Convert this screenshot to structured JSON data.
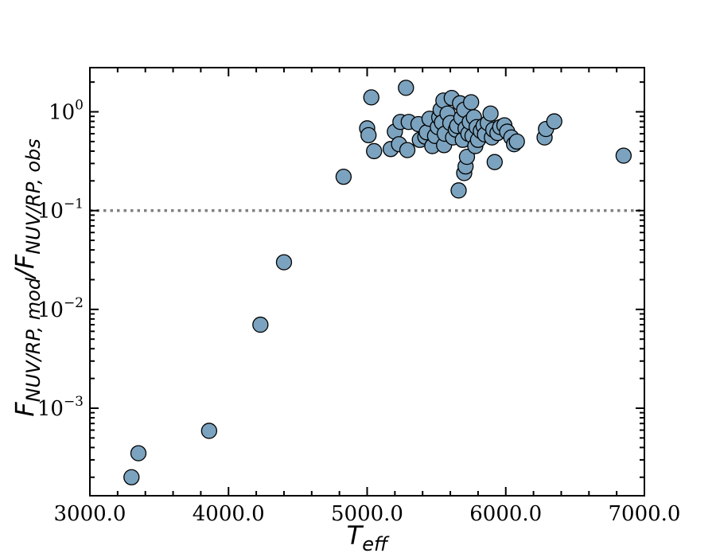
{
  "chart_data": {
    "type": "scatter",
    "title": "",
    "xlabel": {
      "base": "T",
      "sub": "eff"
    },
    "ylabel": {
      "base": "F",
      "sub1": "NUV/RP, mod",
      "slash": "/",
      "base2": "F",
      "sub2": "NUV/RP, obs"
    },
    "xlim": [
      3000,
      7000
    ],
    "ylim": [
      0.00013,
      2.8
    ],
    "yscale": "log",
    "x_ticks": [
      3000,
      4000,
      5000,
      6000,
      7000
    ],
    "x_tick_labels": [
      "3000.0",
      "4000.0",
      "5000.0",
      "6000.0",
      "7000.0"
    ],
    "y_ticks": [
      {
        "value": 0.001,
        "base": "10",
        "exp": "−3"
      },
      {
        "value": 0.01,
        "base": "10",
        "exp": "−2"
      },
      {
        "value": 0.1,
        "base": "10",
        "exp": "−1"
      },
      {
        "value": 1,
        "base": "10",
        "exp": "0"
      }
    ],
    "reference_line": {
      "y": 0.1,
      "style": "dotted",
      "color": "#808080"
    },
    "grid": false,
    "marker_color": "#7ba3bf",
    "marker_edge_color": "#000000",
    "points": [
      {
        "x": 3300,
        "y": 0.0002
      },
      {
        "x": 3350,
        "y": 0.00035
      },
      {
        "x": 3860,
        "y": 0.00059
      },
      {
        "x": 4230,
        "y": 0.007
      },
      {
        "x": 4400,
        "y": 0.03
      },
      {
        "x": 4830,
        "y": 0.22
      },
      {
        "x": 5000,
        "y": 0.68
      },
      {
        "x": 5010,
        "y": 0.58
      },
      {
        "x": 5030,
        "y": 1.4
      },
      {
        "x": 5050,
        "y": 0.4
      },
      {
        "x": 5170,
        "y": 0.42
      },
      {
        "x": 5200,
        "y": 0.63
      },
      {
        "x": 5230,
        "y": 0.47
      },
      {
        "x": 5240,
        "y": 0.79
      },
      {
        "x": 5280,
        "y": 1.75
      },
      {
        "x": 5290,
        "y": 0.41
      },
      {
        "x": 5300,
        "y": 0.79
      },
      {
        "x": 5370,
        "y": 0.75
      },
      {
        "x": 5380,
        "y": 0.52
      },
      {
        "x": 5420,
        "y": 0.56
      },
      {
        "x": 5430,
        "y": 0.62
      },
      {
        "x": 5450,
        "y": 0.85
      },
      {
        "x": 5470,
        "y": 0.45
      },
      {
        "x": 5490,
        "y": 0.57
      },
      {
        "x": 5510,
        "y": 0.7
      },
      {
        "x": 5520,
        "y": 0.88
      },
      {
        "x": 5530,
        "y": 1.05
      },
      {
        "x": 5540,
        "y": 0.78
      },
      {
        "x": 5550,
        "y": 1.3
      },
      {
        "x": 5555,
        "y": 0.46
      },
      {
        "x": 5560,
        "y": 0.6
      },
      {
        "x": 5580,
        "y": 0.96
      },
      {
        "x": 5600,
        "y": 0.77
      },
      {
        "x": 5610,
        "y": 1.38
      },
      {
        "x": 5620,
        "y": 0.55
      },
      {
        "x": 5640,
        "y": 0.66
      },
      {
        "x": 5650,
        "y": 0.72
      },
      {
        "x": 5660,
        "y": 0.16
      },
      {
        "x": 5670,
        "y": 1.22
      },
      {
        "x": 5680,
        "y": 0.87
      },
      {
        "x": 5690,
        "y": 0.52
      },
      {
        "x": 5700,
        "y": 0.24
      },
      {
        "x": 5700,
        "y": 1.05
      },
      {
        "x": 5710,
        "y": 0.68
      },
      {
        "x": 5710,
        "y": 0.28
      },
      {
        "x": 5720,
        "y": 0.35
      },
      {
        "x": 5730,
        "y": 0.6
      },
      {
        "x": 5740,
        "y": 0.79
      },
      {
        "x": 5750,
        "y": 1.25
      },
      {
        "x": 5760,
        "y": 0.57
      },
      {
        "x": 5770,
        "y": 0.88
      },
      {
        "x": 5780,
        "y": 0.45
      },
      {
        "x": 5790,
        "y": 0.7
      },
      {
        "x": 5800,
        "y": 0.52
      },
      {
        "x": 5820,
        "y": 0.64
      },
      {
        "x": 5840,
        "y": 0.72
      },
      {
        "x": 5850,
        "y": 0.59
      },
      {
        "x": 5870,
        "y": 0.77
      },
      {
        "x": 5890,
        "y": 0.96
      },
      {
        "x": 5900,
        "y": 0.55
      },
      {
        "x": 5910,
        "y": 0.66
      },
      {
        "x": 5920,
        "y": 0.31
      },
      {
        "x": 5940,
        "y": 0.61
      },
      {
        "x": 5960,
        "y": 0.7
      },
      {
        "x": 5990,
        "y": 0.73
      },
      {
        "x": 6010,
        "y": 0.63
      },
      {
        "x": 6040,
        "y": 0.55
      },
      {
        "x": 6060,
        "y": 0.47
      },
      {
        "x": 6080,
        "y": 0.5
      },
      {
        "x": 6280,
        "y": 0.55
      },
      {
        "x": 6290,
        "y": 0.67
      },
      {
        "x": 6350,
        "y": 0.8
      },
      {
        "x": 6850,
        "y": 0.36
      }
    ]
  }
}
